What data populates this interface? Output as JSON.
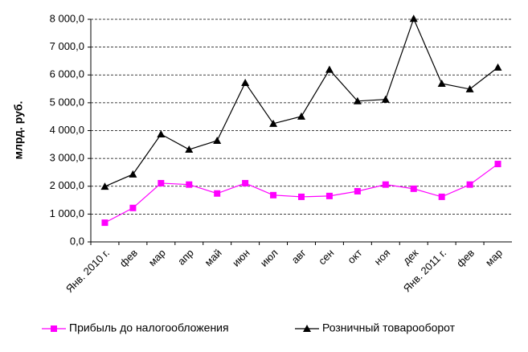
{
  "chart_data": {
    "type": "line",
    "y_label": "млрд. руб.",
    "categories": [
      "Янв. 2010 г.",
      "фев",
      "мар",
      "апр",
      "май",
      "июн",
      "июл",
      "авг",
      "сен",
      "окт",
      "ноя",
      "дек",
      "Янв. 2011 г.",
      "фев",
      "мар"
    ],
    "series": [
      {
        "name": "Прибыль до налогообложения",
        "color": "#ff00ff",
        "marker": "square",
        "values": [
          690,
          1220,
          2110,
          2060,
          1740,
          2110,
          1680,
          1620,
          1650,
          1820,
          2060,
          1910,
          1620,
          2060,
          2800
        ]
      },
      {
        "name": "Розничный товарооборот",
        "color": "#000000",
        "marker": "triangle",
        "values": [
          1990,
          2430,
          3870,
          3320,
          3640,
          5720,
          4250,
          4510,
          6190,
          5060,
          5120,
          8020,
          5690,
          5490,
          6270
        ]
      }
    ],
    "ylim": [
      0,
      8000
    ],
    "yticks": [
      {
        "value": 0,
        "label": "0,0"
      },
      {
        "value": 1000,
        "label": "1 000,0"
      },
      {
        "value": 2000,
        "label": "2 000,0"
      },
      {
        "value": 3000,
        "label": "3 000,0"
      },
      {
        "value": 4000,
        "label": "4 000,0"
      },
      {
        "value": 5000,
        "label": "5 000,0"
      },
      {
        "value": 6000,
        "label": "6 000,0"
      },
      {
        "value": 7000,
        "label": "7 000,0"
      },
      {
        "value": 8000,
        "label": "8 000,0"
      }
    ],
    "grid": true,
    "legend": "bottom"
  }
}
